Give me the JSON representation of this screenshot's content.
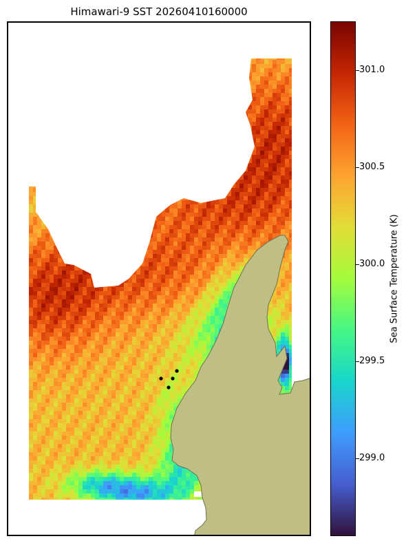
{
  "title": "Himawari-9 SST 20260410160000",
  "colorbar": {
    "label": "Sea Surface Temperature (K)",
    "colormap": "turbo",
    "vmin": 298.6,
    "vmax": 301.25,
    "ticks": [
      {
        "value": 299.0,
        "label": "299.0"
      },
      {
        "value": 299.5,
        "label": "299.5"
      },
      {
        "value": 300.0,
        "label": "300.0"
      },
      {
        "value": 300.5,
        "label": "300.5"
      },
      {
        "value": 301.0,
        "label": "301.0"
      }
    ]
  },
  "colors": {
    "land": "#bfbf85",
    "coast": "#707050",
    "missing": "#ffffff",
    "station_marker": "#000000"
  },
  "stations": {
    "count": 4,
    "marker": "black dot"
  }
}
